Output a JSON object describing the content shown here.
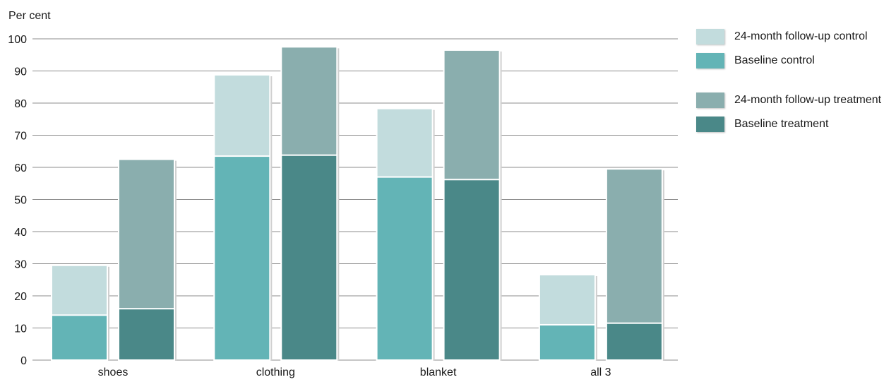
{
  "chart_data": {
    "type": "bar",
    "ylabel": "Per cent",
    "ylim": [
      0,
      100
    ],
    "yticks": [
      0,
      10,
      20,
      30,
      40,
      50,
      60,
      70,
      80,
      90,
      100
    ],
    "grid": true,
    "legend_position": "right",
    "categories": [
      "shoes",
      "clothing",
      "blanket",
      "all 3"
    ],
    "series": [
      {
        "name": "24-month follow-up control",
        "group": "control",
        "layer": "followup",
        "color": "#c2dcdd",
        "values": [
          29.5,
          88.8,
          78.3,
          26.6
        ]
      },
      {
        "name": "Baseline control",
        "group": "control",
        "layer": "baseline",
        "color": "#63b4b6",
        "values": [
          14.0,
          63.5,
          57.0,
          11.0
        ]
      },
      {
        "name": "24-month follow-up treatment",
        "group": "treatment",
        "layer": "followup",
        "color": "#8aaeae",
        "values": [
          62.5,
          97.5,
          96.5,
          59.5
        ]
      },
      {
        "name": "Baseline treatment",
        "group": "treatment",
        "layer": "baseline",
        "color": "#4a8888",
        "values": [
          16.0,
          63.8,
          56.2,
          11.5
        ]
      }
    ]
  }
}
